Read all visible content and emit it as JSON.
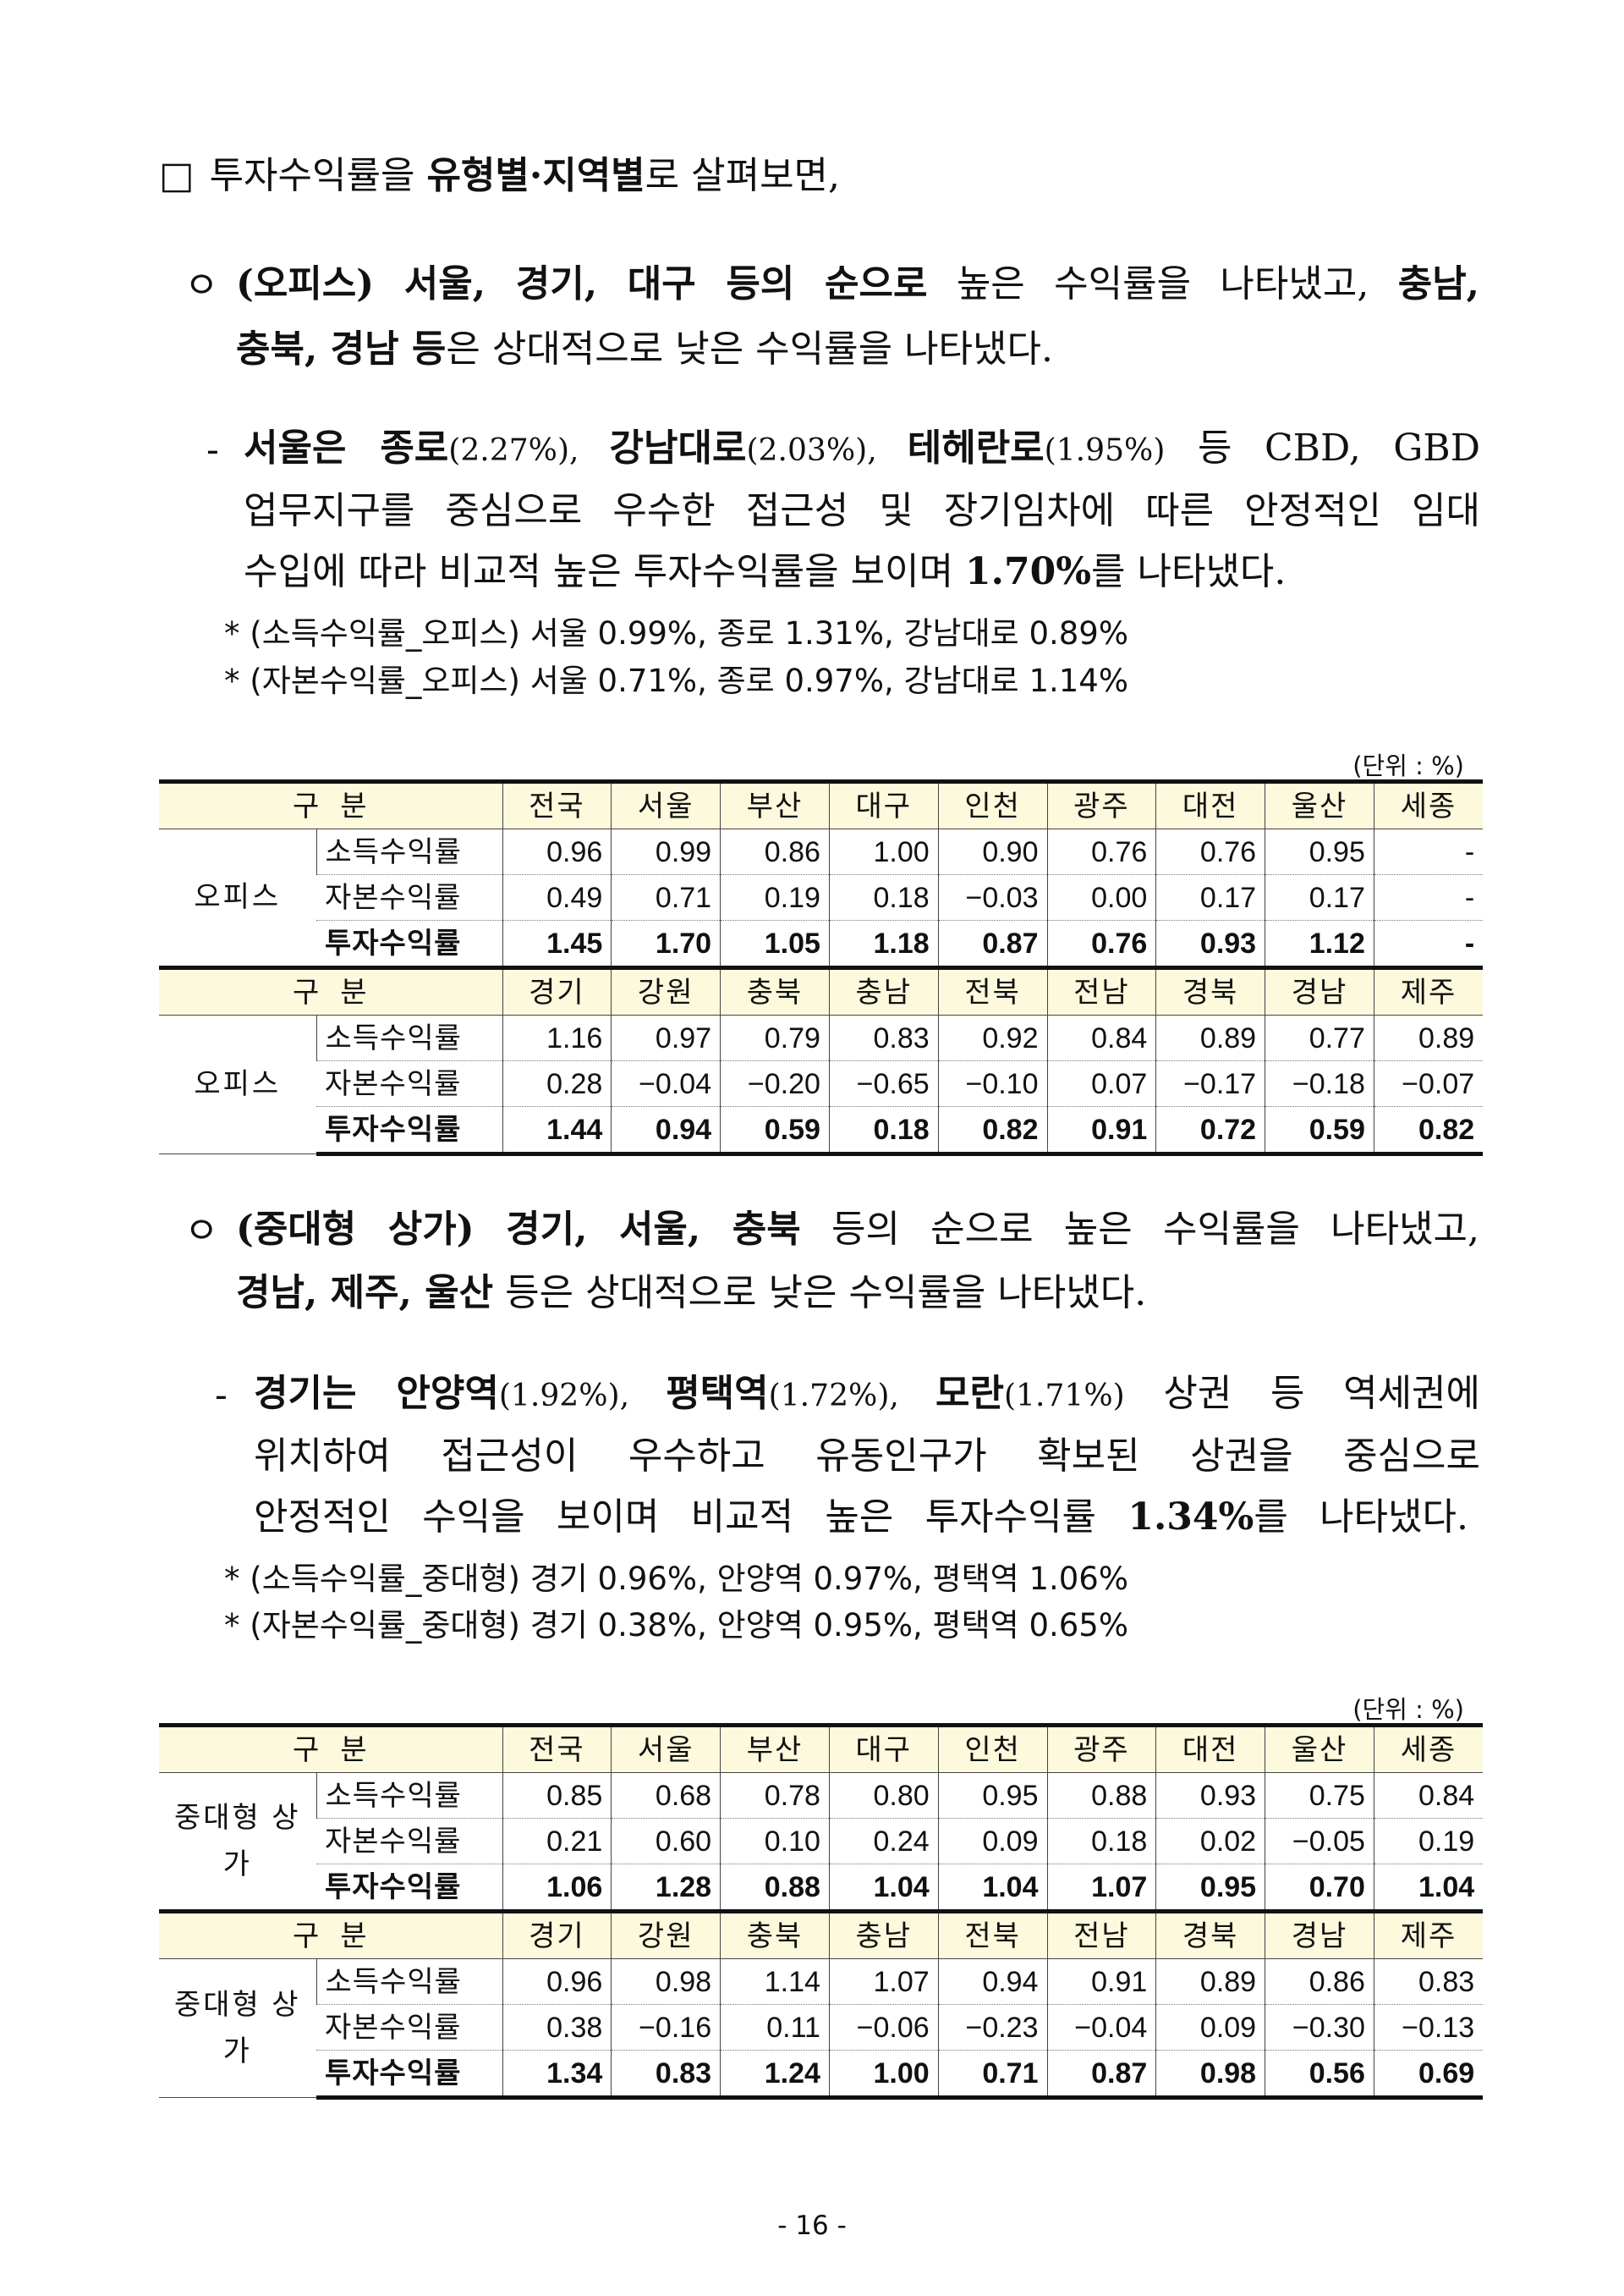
{
  "intro": {
    "box": "□",
    "segs": [
      {
        "t": "투자수익률을 "
      },
      {
        "t": "유형별·지역별",
        "b": true
      },
      {
        "t": "로 살펴보면,"
      }
    ]
  },
  "office": {
    "bullet": "ㅇ",
    "lines": [
      [
        {
          "t": "(오피스) 서울, 경기, 대구 등의 순으로",
          "b": true
        },
        {
          "t": " 높은 수익률을 나타냈고, "
        },
        {
          "t": "충남,",
          "b": true
        }
      ],
      [
        {
          "t": "충북, 경남 등",
          "b": true
        },
        {
          "t": "은 상대적으로 낮은 수익률을 나타냈다."
        }
      ]
    ],
    "dash": "-",
    "sub": [
      [
        {
          "t": "서울은 종로",
          "b": true
        },
        {
          "t": "(2.27%), ",
          "s": true
        },
        {
          "t": "강남대로",
          "b": true
        },
        {
          "t": "(2.03%), ",
          "s": true
        },
        {
          "t": "테헤란로",
          "b": true
        },
        {
          "t": "(1.95%)",
          "s": true
        },
        {
          "t": " 등 CBD, GBD"
        }
      ],
      [
        {
          "t": "업무지구를 중심으로 우수한 접근성 및 장기임차에 따른 안정적인 임대"
        }
      ],
      [
        {
          "t": "수입에 따라 비교적 높은 투자수익률을 보이며 "
        },
        {
          "t": "1.70%",
          "b": true
        },
        {
          "t": "를 나타냈다."
        }
      ]
    ],
    "notes": [
      "* (소득수익률_오피스) 서울 0.99%, 종로 1.31%, 강남대로 0.89%",
      "* (자본수익률_오피스) 서울 0.71%, 종로 0.97%, 강남대로 1.14%"
    ]
  },
  "unit": "(단위 : %)",
  "table1": {
    "header_label": "구  분",
    "group": "오피스",
    "row_labels": [
      "소득수익률",
      "자본수익률",
      "투자수익률"
    ],
    "blocks": [
      {
        "regions": [
          "전국",
          "서울",
          "부산",
          "대구",
          "인천",
          "광주",
          "대전",
          "울산",
          "세종"
        ],
        "rows": [
          [
            "0.96",
            "0.99",
            "0.86",
            "1.00",
            "0.90",
            "0.76",
            "0.76",
            "0.95",
            "-"
          ],
          [
            "0.49",
            "0.71",
            "0.19",
            "0.18",
            "−0.03",
            "0.00",
            "0.17",
            "0.17",
            "-"
          ],
          [
            "1.45",
            "1.70",
            "1.05",
            "1.18",
            "0.87",
            "0.76",
            "0.93",
            "1.12",
            "-"
          ]
        ]
      },
      {
        "regions": [
          "경기",
          "강원",
          "충북",
          "충남",
          "전북",
          "전남",
          "경북",
          "경남",
          "제주"
        ],
        "rows": [
          [
            "1.16",
            "0.97",
            "0.79",
            "0.83",
            "0.92",
            "0.84",
            "0.89",
            "0.77",
            "0.89"
          ],
          [
            "0.28",
            "−0.04",
            "−0.20",
            "−0.65",
            "−0.10",
            "0.07",
            "−0.17",
            "−0.18",
            "−0.07"
          ],
          [
            "1.44",
            "0.94",
            "0.59",
            "0.18",
            "0.82",
            "0.91",
            "0.72",
            "0.59",
            "0.82"
          ]
        ]
      }
    ]
  },
  "retail": {
    "bullet": "ㅇ",
    "lines": [
      [
        {
          "t": "(중대형 상가) 경기, 서울, 충북",
          "b": true
        },
        {
          "t": " 등의 순으로 높은 수익률을 나타냈고,"
        }
      ],
      [
        {
          "t": "경남, 제주, 울산",
          "b": true
        },
        {
          "t": " 등은 상대적으로 낮은 수익률을 나타냈다."
        }
      ]
    ],
    "dash": "-",
    "sub": [
      [
        {
          "t": "경기는 안양역",
          "b": true
        },
        {
          "t": "(1.92%), ",
          "s": true
        },
        {
          "t": "평택역",
          "b": true
        },
        {
          "t": "(1.72%), ",
          "s": true
        },
        {
          "t": "모란",
          "b": true
        },
        {
          "t": "(1.71%)",
          "s": true
        },
        {
          "t": " 상권 등 역세권에"
        }
      ],
      [
        {
          "t": "위치하여 접근성이 우수하고 유동인구가 확보된 상권을 중심으로"
        }
      ],
      [
        {
          "t": "안정적인 수익을 보이며 비교적 높은 투자수익률 "
        },
        {
          "t": "1.34%",
          "b": true
        },
        {
          "t": "를 나타냈다."
        }
      ]
    ],
    "notes": [
      "* (소득수익률_중대형) 경기 0.96%, 안양역 0.97%, 평택역 1.06%",
      "* (자본수익률_중대형) 경기 0.38%, 안양역 0.95%, 평택역 0.65%"
    ]
  },
  "table2": {
    "header_label": "구  분",
    "group": "중대형 상가",
    "row_labels": [
      "소득수익률",
      "자본수익률",
      "투자수익률"
    ],
    "blocks": [
      {
        "regions": [
          "전국",
          "서울",
          "부산",
          "대구",
          "인천",
          "광주",
          "대전",
          "울산",
          "세종"
        ],
        "rows": [
          [
            "0.85",
            "0.68",
            "0.78",
            "0.80",
            "0.95",
            "0.88",
            "0.93",
            "0.75",
            "0.84"
          ],
          [
            "0.21",
            "0.60",
            "0.10",
            "0.24",
            "0.09",
            "0.18",
            "0.02",
            "−0.05",
            "0.19"
          ],
          [
            "1.06",
            "1.28",
            "0.88",
            "1.04",
            "1.04",
            "1.07",
            "0.95",
            "0.70",
            "1.04"
          ]
        ]
      },
      {
        "regions": [
          "경기",
          "강원",
          "충북",
          "충남",
          "전북",
          "전남",
          "경북",
          "경남",
          "제주"
        ],
        "rows": [
          [
            "0.96",
            "0.98",
            "1.14",
            "1.07",
            "0.94",
            "0.91",
            "0.89",
            "0.86",
            "0.83"
          ],
          [
            "0.38",
            "−0.16",
            "0.11",
            "−0.06",
            "−0.23",
            "−0.04",
            "0.09",
            "−0.30",
            "−0.13"
          ],
          [
            "1.34",
            "0.83",
            "1.24",
            "1.00",
            "0.71",
            "0.87",
            "0.98",
            "0.56",
            "0.69"
          ]
        ]
      }
    ]
  },
  "page_number": "- 16 -"
}
